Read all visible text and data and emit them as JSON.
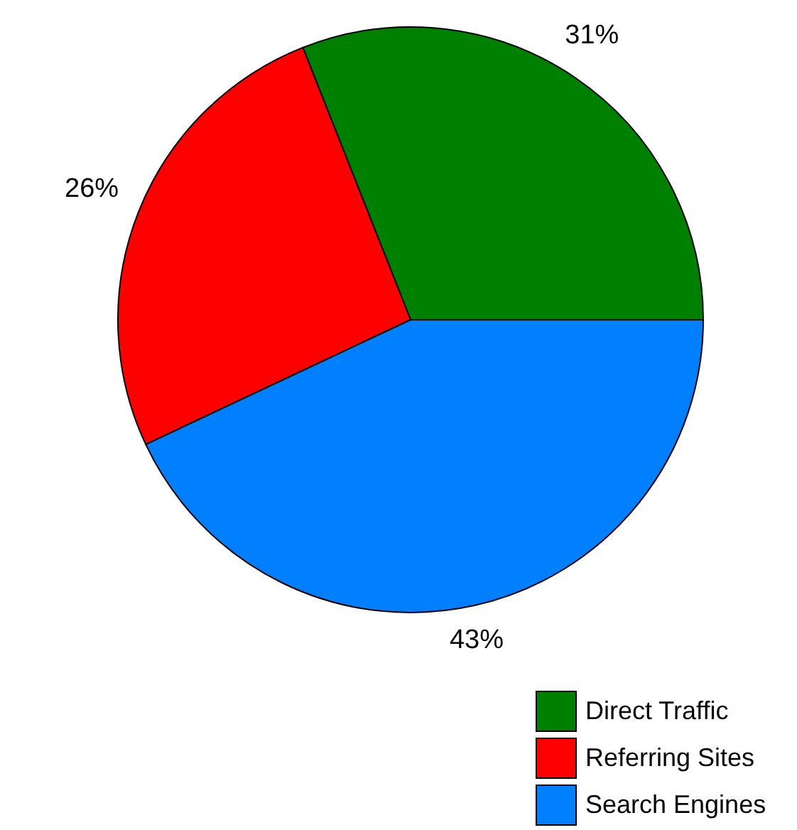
{
  "chart_data": {
    "type": "pie",
    "categories": [
      "Direct Traffic",
      "Referring Sites",
      "Search Engines"
    ],
    "values": [
      31,
      26,
      43
    ],
    "colors": [
      "#008000",
      "#ff0000",
      "#0080ff"
    ],
    "value_labels": [
      "31%",
      "26%",
      "43%"
    ],
    "legend": "bottom right"
  }
}
